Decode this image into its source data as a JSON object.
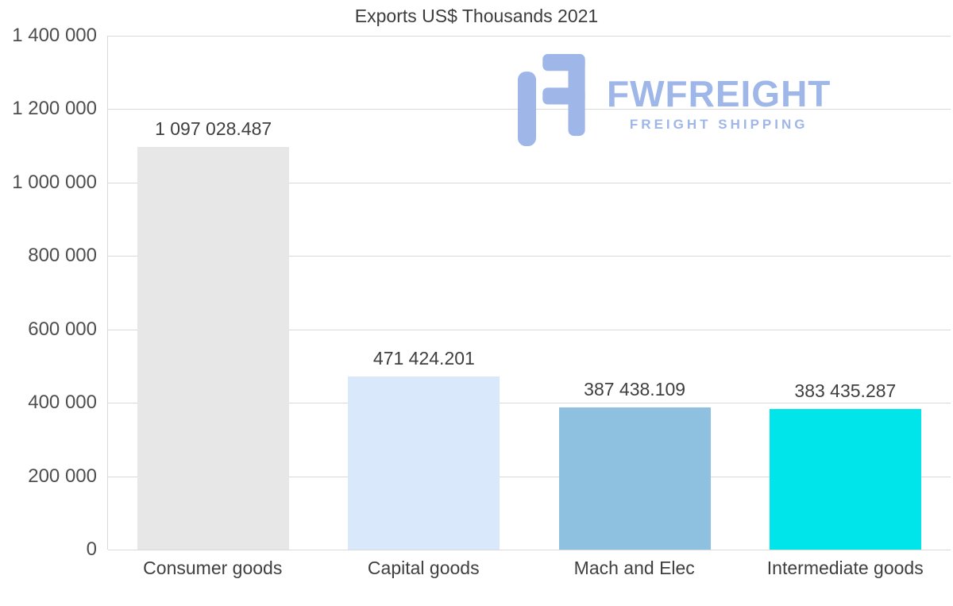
{
  "chart_data": {
    "type": "bar",
    "title": "Exports US$ Thousands 2021",
    "categories": [
      "Consumer goods",
      "Capital goods",
      "Mach and Elec",
      "Intermediate goods"
    ],
    "values": [
      1097028.487,
      471424.201,
      387438.109,
      383435.287
    ],
    "value_labels": [
      "1 097 028.487",
      "471 424.201",
      "387 438.109",
      "383 435.287"
    ],
    "bar_colors": [
      "#e7e7e7",
      "#d9e8fa",
      "#8ec0df",
      "#00e5e9"
    ],
    "xlabel": "",
    "ylabel": "",
    "ylim": [
      0,
      1400000
    ],
    "ytick_interval": 200000,
    "ytick_labels": [
      "0",
      "200 000",
      "400 000",
      "600 000",
      "800 000",
      "1 000 000",
      "1 200 000",
      "1 400 000"
    ],
    "grid": true,
    "grid_color": "#d9d9d9",
    "legend": false
  },
  "watermark": {
    "brand": "FWFREIGHT",
    "tagline": "FREIGHT SHIPPING",
    "color": "#9fb6e9"
  }
}
